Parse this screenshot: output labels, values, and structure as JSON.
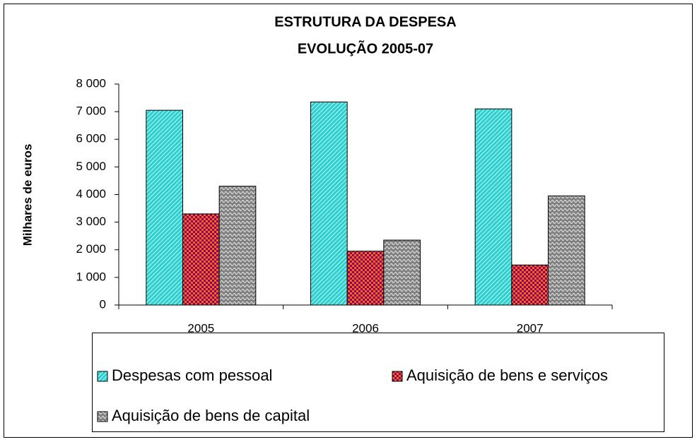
{
  "chart_data": {
    "type": "bar",
    "title": "ESTRUTURA DA DESPESA",
    "subtitle": "EVOLUÇÃO 2005-07",
    "y_label": "Milhares de euros",
    "categories": [
      "2005",
      "2006",
      "2007"
    ],
    "series": [
      {
        "name": "Despesas com pessoal",
        "color": "#33cccc",
        "values": [
          7050,
          7350,
          7100
        ]
      },
      {
        "name": "Aquisição de bens e serviços",
        "color": "#ff6600",
        "values": [
          3300,
          1950,
          1450
        ]
      },
      {
        "name": "Aquisição de bens de capital",
        "color": "#808080",
        "values": [
          4300,
          2350,
          3950
        ]
      }
    ],
    "ylim": [
      0,
      8000
    ],
    "yticks": [
      0,
      {
        "value": 1000,
        "label": "1 000"
      },
      {
        "value": 2000,
        "label": "2 000"
      },
      {
        "value": 3000,
        "label": "3 000"
      },
      {
        "value": 4000,
        "label": "4 000"
      },
      {
        "value": 5000,
        "label": "5 000"
      },
      {
        "value": 6000,
        "label": "6 000"
      },
      {
        "value": 7000,
        "label": "7 000"
      },
      {
        "value": 8000,
        "label": "8 000"
      }
    ],
    "grid": false,
    "legend": "bottom"
  }
}
